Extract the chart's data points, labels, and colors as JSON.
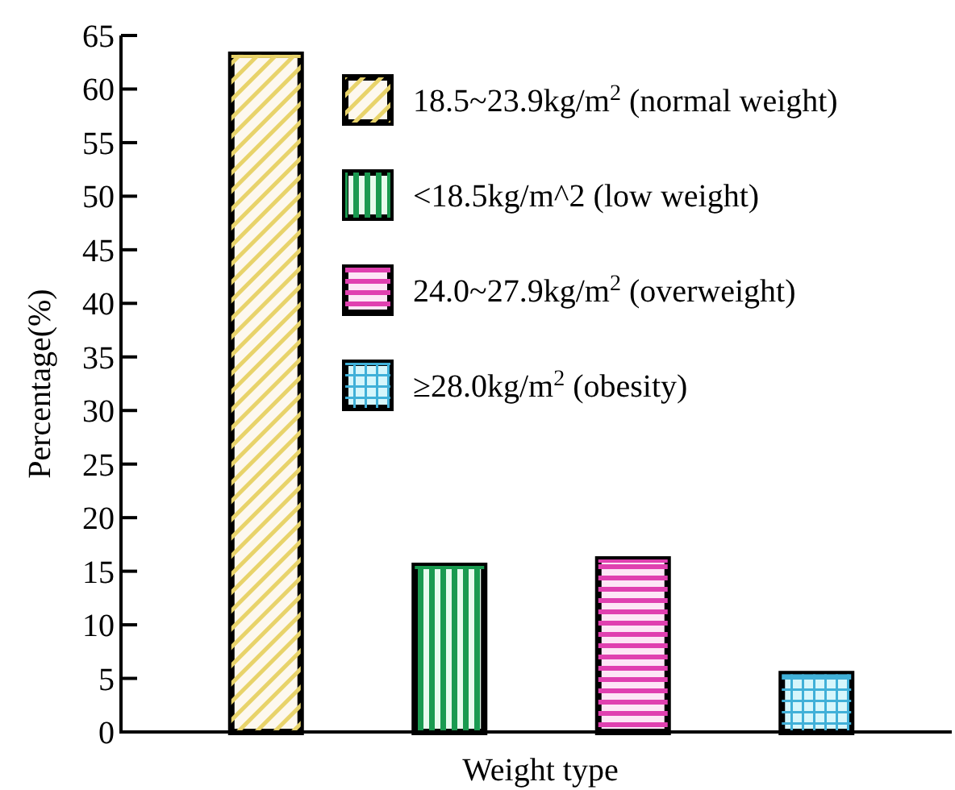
{
  "chart_data": {
    "type": "bar",
    "xlabel": "Weight type",
    "ylabel": "Percentage(%)",
    "categories": [
      null,
      null,
      null,
      null
    ],
    "ylim": [
      0,
      65
    ],
    "yticks": [
      0,
      5,
      10,
      15,
      20,
      25,
      30,
      35,
      40,
      45,
      50,
      55,
      60,
      65
    ],
    "grid": false,
    "legend": "top right",
    "series": [
      {
        "name": "18.5~23.9kg/m$^{2}$ (normal weight)",
        "color": "#e8d36a",
        "values": [
          63.2,
          null,
          null,
          null
        ]
      },
      {
        "name": "<18.5kg/m^2 (low weight)",
        "color": "#1a9a50",
        "values": [
          null,
          15.5,
          null,
          null
        ]
      },
      {
        "name": "24.0~27.9kg/m$^{2}$ (overweight)",
        "color": "#e040b0",
        "values": [
          null,
          null,
          16.1,
          null
        ]
      },
      {
        "name": "≥28.0kg/m$^{2}$ (obesity)",
        "color": "#40b0d8",
        "values": [
          null,
          null,
          null,
          5.4
        ]
      }
    ]
  }
}
